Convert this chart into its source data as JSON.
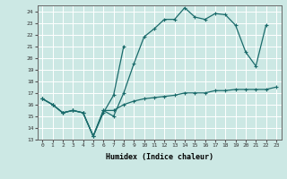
{
  "xlabel": "Humidex (Indice chaleur)",
  "bg_color": "#cce8e4",
  "grid_color": "#ffffff",
  "line_color": "#1a6b6b",
  "xlim": [
    -0.5,
    23.5
  ],
  "ylim": [
    13,
    24.5
  ],
  "yticks": [
    13,
    14,
    15,
    16,
    17,
    18,
    19,
    20,
    21,
    22,
    23,
    24
  ],
  "xticks": [
    0,
    1,
    2,
    3,
    4,
    5,
    6,
    7,
    8,
    9,
    10,
    11,
    12,
    13,
    14,
    15,
    16,
    17,
    18,
    19,
    20,
    21,
    22,
    23
  ],
  "line1_x": [
    0,
    1,
    2,
    3,
    4,
    5,
    6,
    7,
    8,
    9,
    10,
    11,
    12,
    13,
    14,
    15,
    16,
    17,
    18,
    19,
    20,
    21,
    22
  ],
  "line1_y": [
    16.5,
    16.0,
    15.3,
    15.5,
    15.3,
    13.3,
    15.5,
    15.0,
    17.0,
    19.5,
    21.8,
    22.5,
    23.3,
    23.3,
    24.3,
    23.5,
    23.3,
    23.8,
    23.7,
    22.8,
    20.5,
    19.3,
    22.8
  ],
  "line2_x": [
    0,
    1,
    2,
    3,
    4,
    5,
    6,
    7,
    8
  ],
  "line2_y": [
    16.5,
    16.0,
    15.3,
    15.5,
    15.3,
    13.3,
    15.3,
    16.8,
    21.0
  ],
  "line3_x": [
    0,
    1,
    2,
    3,
    4,
    5,
    6,
    7,
    8,
    9,
    10,
    11,
    12,
    13,
    14,
    15,
    16,
    17,
    18,
    19,
    20,
    21,
    22,
    23
  ],
  "line3_y": [
    16.5,
    16.0,
    15.3,
    15.5,
    15.3,
    13.3,
    15.5,
    15.5,
    16.0,
    16.3,
    16.5,
    16.6,
    16.7,
    16.8,
    17.0,
    17.0,
    17.0,
    17.2,
    17.2,
    17.3,
    17.3,
    17.3,
    17.3,
    17.5
  ]
}
